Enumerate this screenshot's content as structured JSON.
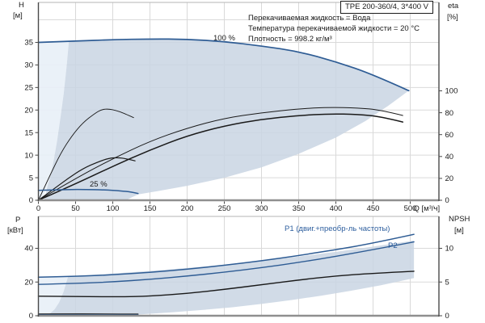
{
  "title": "TPE 200-360/4, 3*400 V",
  "info": [
    "Перекачиваемая жидкость = Вода",
    "Температура перекачиваемой жидкости = 20 °C",
    "Плотность = 998.2 кг/м³"
  ],
  "axis_labels": {
    "h": "H",
    "h_unit": "[м]",
    "eta": "eta",
    "eta_unit": "[%]",
    "p": "P",
    "p_unit": "[кВт]",
    "npsh": "NPSH",
    "npsh_unit": "[м]"
  },
  "annotations": {
    "speed_max": "100 %",
    "speed_min": "25 %",
    "p1": "P1 (двиг.+преобр-ль частоты)",
    "p2": "P2"
  },
  "colors": {
    "curve_blue": "#2e5c94",
    "label_blue": "#2d5e9e",
    "black": "#1a1a1a",
    "band": "#c9d5e3",
    "band_light": "#e8eff7",
    "grid": "#d9d9d9",
    "axis_dark": "#4a4a4a",
    "axis_gray": "#8f8f8f",
    "frame_light": "#b5b5b5"
  },
  "chart_data": [
    {
      "name": "qh-eta-chart",
      "type": "line",
      "x": {
        "label": "Q [м³/ч]",
        "ticks": [
          0,
          50,
          100,
          150,
          200,
          250,
          300,
          350,
          400,
          450,
          500
        ],
        "show_labels": true,
        "max": 538
      },
      "y": {
        "label": "H [м]",
        "ticks": [
          0,
          5,
          10,
          15,
          20,
          25,
          30,
          35
        ],
        "grid": [
          5,
          10,
          15,
          20,
          25,
          30,
          35,
          40
        ],
        "range": [
          0,
          44
        ]
      },
      "y2": {
        "label": "eta [%]",
        "ticks": [
          0,
          20,
          40,
          60,
          80,
          100
        ],
        "range": [
          0,
          181
        ]
      },
      "areas": [
        {
          "name": "operating-envelope-light",
          "color": "band_light",
          "opacity": 0.9,
          "points": [
            [
              0,
              0
            ],
            [
              0,
              35
            ],
            [
              20,
              35.1
            ],
            [
              41,
              35.2
            ],
            [
              38,
              29.8
            ],
            [
              34,
              23.6
            ],
            [
              30,
              18.7
            ],
            [
              25,
              13
            ],
            [
              20,
              8.3
            ],
            [
              15,
              4.7
            ],
            [
              10,
              2.1
            ],
            [
              5,
              0.5
            ],
            [
              0,
              0
            ]
          ]
        },
        {
          "name": "operating-envelope",
          "color": "band",
          "opacity": 0.85,
          "points": [
            [
              8,
              0
            ],
            [
              12,
              3
            ],
            [
              16,
              5.3
            ],
            [
              20,
              8.3
            ],
            [
              25,
              13
            ],
            [
              30,
              18.7
            ],
            [
              34,
              23.6
            ],
            [
              38,
              29.8
            ],
            [
              41,
              35.2
            ],
            [
              50,
              35.3
            ],
            [
              100,
              35.6
            ],
            [
              150,
              35.75
            ],
            [
              200,
              35.7
            ],
            [
              250,
              35.2
            ],
            [
              300,
              34.2
            ],
            [
              350,
              33
            ],
            [
              400,
              30.7
            ],
            [
              450,
              27.9
            ],
            [
              498,
              24.3
            ],
            [
              470,
              20.9
            ],
            [
              440,
              17.6
            ],
            [
              400,
              13.9
            ],
            [
              350,
              10.3
            ],
            [
              300,
              7.3
            ],
            [
              250,
              5.0
            ],
            [
              200,
              3.2
            ],
            [
              160,
              2.0
            ],
            [
              134,
              1.3
            ],
            [
              125,
              0.6
            ],
            [
              118,
              0
            ]
          ]
        }
      ],
      "series": [
        {
          "name": "eta-100-pump",
          "axis": "y2",
          "color": "black",
          "width": 1.0,
          "points": [
            [
              0,
              0
            ],
            [
              50,
              20
            ],
            [
              100,
              38
            ],
            [
              150,
              54
            ],
            [
              200,
              66
            ],
            [
              250,
              75
            ],
            [
              300,
              80
            ],
            [
              350,
              83.5
            ],
            [
              390,
              85
            ],
            [
              430,
              84.5
            ],
            [
              460,
              82.5
            ],
            [
              490,
              77.5
            ]
          ]
        },
        {
          "name": "eta-100-total",
          "axis": "y2",
          "color": "black",
          "width": 1.5,
          "points": [
            [
              0,
              0
            ],
            [
              50,
              15
            ],
            [
              100,
              31
            ],
            [
              150,
              46
            ],
            [
              200,
              59
            ],
            [
              250,
              68
            ],
            [
              300,
              74
            ],
            [
              350,
              77.5
            ],
            [
              390,
              79
            ],
            [
              430,
              78.5
            ],
            [
              460,
              76.5
            ],
            [
              490,
              71.5
            ]
          ]
        },
        {
          "name": "eta-25-pump",
          "axis": "y2",
          "color": "black",
          "width": 0.9,
          "points": [
            [
              0,
              0
            ],
            [
              15,
              22
            ],
            [
              30,
              43
            ],
            [
              45,
              59
            ],
            [
              60,
              71
            ],
            [
              75,
              79
            ],
            [
              85,
              83
            ],
            [
              95,
              83.5
            ],
            [
              105,
              82
            ],
            [
              115,
              79.5
            ],
            [
              128,
              75.5
            ]
          ]
        },
        {
          "name": "eta-25-total",
          "axis": "y2",
          "color": "black",
          "width": 1.2,
          "points": [
            [
              0,
              0
            ],
            [
              20,
              10
            ],
            [
              40,
              20
            ],
            [
              60,
              29
            ],
            [
              80,
              35
            ],
            [
              95,
              38.5
            ],
            [
              107,
              39
            ],
            [
              118,
              38
            ],
            [
              130,
              36
            ]
          ]
        },
        {
          "name": "qh-100",
          "axis": "y",
          "color": "curve_blue",
          "width": 1.7,
          "points": [
            [
              0,
              35
            ],
            [
              50,
              35.3
            ],
            [
              100,
              35.6
            ],
            [
              150,
              35.75
            ],
            [
              200,
              35.7
            ],
            [
              250,
              35.2
            ],
            [
              300,
              34.2
            ],
            [
              350,
              33
            ],
            [
              400,
              30.7
            ],
            [
              450,
              27.9
            ],
            [
              498,
              24.3
            ]
          ]
        },
        {
          "name": "qh-25",
          "axis": "y",
          "color": "curve_blue",
          "width": 1.5,
          "points": [
            [
              0,
              2.2
            ],
            [
              30,
              2.35
            ],
            [
              60,
              2.4
            ],
            [
              90,
              2.3
            ],
            [
              110,
              2.1
            ],
            [
              125,
              1.85
            ],
            [
              134,
              1.5
            ]
          ]
        }
      ]
    },
    {
      "name": "power-npsh-chart",
      "type": "line",
      "x": {
        "label": "",
        "ticks": [
          0,
          50,
          100,
          150,
          200,
          250,
          300,
          350,
          400,
          450,
          500
        ],
        "show_labels": false,
        "max": 538
      },
      "y": {
        "label": "P [кВт]",
        "ticks": [
          0,
          20,
          40
        ],
        "grid": [
          20,
          40
        ],
        "range": [
          0,
          59
        ]
      },
      "y2": {
        "label": "NPSH [м]",
        "ticks": [
          0,
          5,
          10
        ],
        "range": [
          0,
          14.7
        ]
      },
      "areas": [
        {
          "name": "power-envelope-light",
          "color": "band_light",
          "opacity": 0.9,
          "points": [
            [
              0,
              0
            ],
            [
              0,
              22.9
            ],
            [
              20,
              23.1
            ],
            [
              40,
              23.4
            ],
            [
              34,
              14.4
            ],
            [
              28,
              8
            ],
            [
              22,
              3.9
            ],
            [
              16,
              1.5
            ],
            [
              10,
              0.4
            ],
            [
              0,
              0
            ]
          ]
        },
        {
          "name": "power-envelope",
          "color": "band",
          "opacity": 0.85,
          "points": [
            [
              10,
              0
            ],
            [
              16,
              1.5
            ],
            [
              22,
              3.9
            ],
            [
              28,
              8
            ],
            [
              34,
              14.4
            ],
            [
              40,
              23.4
            ],
            [
              100,
              25
            ],
            [
              150,
              26.6
            ],
            [
              200,
              28.3
            ],
            [
              250,
              30.3
            ],
            [
              300,
              32.6
            ],
            [
              350,
              35.1
            ],
            [
              400,
              37.9
            ],
            [
              450,
              41
            ],
            [
              505,
              44.6
            ],
            [
              505,
              22.3
            ],
            [
              460,
              18
            ],
            [
              420,
              14.8
            ],
            [
              380,
              11.9
            ],
            [
              340,
              9.3
            ],
            [
              300,
              7
            ],
            [
              260,
              5
            ],
            [
              220,
              3.4
            ],
            [
              180,
              2
            ],
            [
              140,
              0.9
            ],
            [
              100,
              0.2
            ],
            [
              10,
              0
            ]
          ]
        }
      ],
      "series": [
        {
          "name": "npsh",
          "axis": "y2",
          "color": "black",
          "width": 1.4,
          "points": [
            [
              0,
              2.9
            ],
            [
              60,
              2.85
            ],
            [
              110,
              2.8
            ],
            [
              150,
              2.9
            ],
            [
              200,
              3.3
            ],
            [
              250,
              3.9
            ],
            [
              300,
              4.6
            ],
            [
              350,
              5.3
            ],
            [
              400,
              5.9
            ],
            [
              450,
              6.3
            ],
            [
              505,
              6.6
            ]
          ]
        },
        {
          "name": "p1-100",
          "axis": "y",
          "color": "curve_blue",
          "width": 1.5,
          "points": [
            [
              0,
              22.9
            ],
            [
              50,
              23.3
            ],
            [
              100,
              24.3
            ],
            [
              150,
              25.7
            ],
            [
              200,
              27.6
            ],
            [
              250,
              29.9
            ],
            [
              300,
              32.6
            ],
            [
              350,
              35.7
            ],
            [
              400,
              39.2
            ],
            [
              450,
              43
            ],
            [
              505,
              48.3
            ]
          ]
        },
        {
          "name": "p2-100",
          "axis": "y",
          "color": "curve_blue",
          "width": 1.4,
          "points": [
            [
              0,
              18.6
            ],
            [
              50,
              19.1
            ],
            [
              100,
              20.1
            ],
            [
              150,
              21.6
            ],
            [
              200,
              23.5
            ],
            [
              250,
              25.8
            ],
            [
              300,
              28.5
            ],
            [
              350,
              31.6
            ],
            [
              400,
              35.2
            ],
            [
              450,
              39.2
            ],
            [
              505,
              43.8
            ]
          ]
        },
        {
          "name": "p1-25",
          "axis": "y",
          "color": "black",
          "width": 1.2,
          "points": [
            [
              0,
              1.0
            ],
            [
              70,
              1.15
            ],
            [
              134,
              0.95
            ]
          ]
        },
        {
          "name": "p2-25",
          "axis": "y",
          "color": "curve_blue",
          "width": 1.4,
          "points": [
            [
              0,
              0.5
            ],
            [
              70,
              0.6
            ],
            [
              134,
              0.55
            ]
          ]
        }
      ]
    }
  ]
}
